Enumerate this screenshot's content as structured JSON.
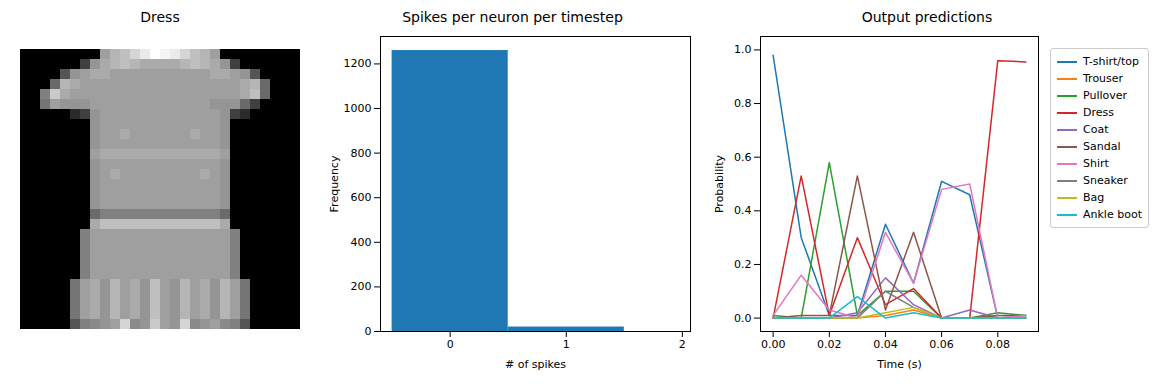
{
  "chart_data": [
    {
      "type": "image",
      "title": "Dress",
      "tick_labels": false,
      "pixels": [
        [
          0,
          0,
          0,
          0,
          0,
          0,
          0,
          0,
          150,
          170,
          180,
          200,
          220,
          240,
          230,
          220,
          200,
          180,
          170,
          150,
          0,
          0,
          0,
          0,
          0,
          0,
          0,
          0
        ],
        [
          0,
          0,
          0,
          0,
          0,
          0,
          60,
          140,
          160,
          170,
          180,
          170,
          160,
          160,
          160,
          160,
          170,
          180,
          170,
          160,
          140,
          60,
          0,
          0,
          0,
          0,
          0,
          0
        ],
        [
          0,
          0,
          0,
          0,
          80,
          140,
          150,
          160,
          160,
          150,
          150,
          150,
          150,
          150,
          150,
          150,
          150,
          150,
          150,
          160,
          160,
          150,
          140,
          80,
          0,
          0,
          0,
          0
        ],
        [
          0,
          0,
          0,
          100,
          170,
          160,
          150,
          150,
          150,
          150,
          150,
          150,
          150,
          150,
          150,
          150,
          150,
          150,
          150,
          150,
          150,
          150,
          160,
          170,
          100,
          0,
          0,
          0
        ],
        [
          0,
          0,
          120,
          190,
          160,
          150,
          150,
          150,
          150,
          150,
          150,
          150,
          150,
          150,
          150,
          150,
          150,
          150,
          150,
          150,
          150,
          150,
          160,
          180,
          100,
          0,
          0,
          0
        ],
        [
          0,
          0,
          110,
          150,
          140,
          140,
          140,
          150,
          150,
          150,
          150,
          150,
          150,
          150,
          150,
          150,
          150,
          150,
          150,
          140,
          140,
          140,
          100,
          60,
          0,
          0,
          0,
          0
        ],
        [
          0,
          0,
          0,
          0,
          0,
          40,
          60,
          140,
          150,
          150,
          150,
          150,
          150,
          150,
          150,
          150,
          150,
          150,
          150,
          150,
          140,
          60,
          40,
          0,
          0,
          0,
          0,
          0
        ],
        [
          0,
          0,
          0,
          0,
          0,
          0,
          0,
          140,
          150,
          150,
          150,
          150,
          150,
          150,
          150,
          150,
          150,
          150,
          150,
          150,
          140,
          0,
          0,
          0,
          0,
          0,
          0,
          0
        ],
        [
          0,
          0,
          0,
          0,
          0,
          0,
          0,
          140,
          150,
          150,
          160,
          150,
          150,
          150,
          150,
          150,
          150,
          160,
          150,
          150,
          140,
          0,
          0,
          0,
          0,
          0,
          0,
          0
        ],
        [
          0,
          0,
          0,
          0,
          0,
          0,
          0,
          140,
          150,
          150,
          150,
          150,
          150,
          150,
          150,
          150,
          150,
          150,
          150,
          150,
          140,
          0,
          0,
          0,
          0,
          0,
          0,
          0
        ],
        [
          0,
          0,
          0,
          0,
          0,
          0,
          0,
          150,
          160,
          160,
          160,
          160,
          160,
          160,
          160,
          160,
          160,
          160,
          160,
          160,
          150,
          0,
          0,
          0,
          0,
          0,
          0,
          0
        ],
        [
          0,
          0,
          0,
          0,
          0,
          0,
          0,
          140,
          150,
          150,
          150,
          150,
          150,
          150,
          150,
          150,
          150,
          150,
          150,
          150,
          140,
          0,
          0,
          0,
          0,
          0,
          0,
          0
        ],
        [
          0,
          0,
          0,
          0,
          0,
          0,
          0,
          140,
          150,
          160,
          150,
          150,
          150,
          150,
          150,
          150,
          150,
          150,
          160,
          150,
          140,
          0,
          0,
          0,
          0,
          0,
          0,
          0
        ],
        [
          0,
          0,
          0,
          0,
          0,
          0,
          0,
          140,
          150,
          150,
          150,
          150,
          150,
          150,
          150,
          150,
          150,
          150,
          150,
          150,
          140,
          0,
          0,
          0,
          0,
          0,
          0,
          0
        ],
        [
          0,
          0,
          0,
          0,
          0,
          0,
          0,
          140,
          150,
          150,
          150,
          150,
          150,
          150,
          150,
          150,
          150,
          150,
          150,
          150,
          140,
          0,
          0,
          0,
          0,
          0,
          0,
          0
        ],
        [
          0,
          0,
          0,
          0,
          0,
          0,
          0,
          140,
          150,
          150,
          150,
          150,
          150,
          150,
          150,
          150,
          150,
          150,
          150,
          150,
          140,
          0,
          0,
          0,
          0,
          0,
          0,
          0
        ],
        [
          0,
          0,
          0,
          0,
          0,
          0,
          0,
          100,
          120,
          120,
          120,
          120,
          120,
          120,
          120,
          120,
          120,
          120,
          120,
          120,
          100,
          0,
          0,
          0,
          0,
          0,
          0,
          0
        ],
        [
          0,
          0,
          0,
          0,
          0,
          0,
          0,
          160,
          180,
          180,
          180,
          180,
          180,
          180,
          180,
          180,
          180,
          180,
          180,
          180,
          160,
          0,
          0,
          0,
          0,
          0,
          0,
          0
        ],
        [
          0,
          0,
          0,
          0,
          0,
          0,
          120,
          150,
          150,
          150,
          150,
          150,
          150,
          150,
          150,
          150,
          150,
          150,
          150,
          150,
          150,
          120,
          0,
          0,
          0,
          0,
          0,
          0
        ],
        [
          0,
          0,
          0,
          0,
          0,
          0,
          120,
          150,
          150,
          150,
          150,
          150,
          150,
          150,
          150,
          150,
          150,
          150,
          150,
          150,
          150,
          120,
          0,
          0,
          0,
          0,
          0,
          0
        ],
        [
          0,
          0,
          0,
          0,
          0,
          0,
          120,
          150,
          150,
          150,
          150,
          150,
          150,
          150,
          150,
          150,
          150,
          150,
          150,
          150,
          150,
          120,
          0,
          0,
          0,
          0,
          0,
          0
        ],
        [
          0,
          0,
          0,
          0,
          0,
          0,
          120,
          150,
          150,
          150,
          150,
          150,
          150,
          150,
          150,
          150,
          150,
          150,
          150,
          150,
          150,
          120,
          0,
          0,
          0,
          0,
          0,
          0
        ],
        [
          0,
          0,
          0,
          0,
          0,
          0,
          120,
          150,
          150,
          150,
          150,
          150,
          150,
          150,
          150,
          150,
          150,
          150,
          150,
          150,
          150,
          120,
          0,
          0,
          0,
          0,
          0,
          0
        ],
        [
          0,
          0,
          0,
          0,
          0,
          110,
          150,
          160,
          140,
          170,
          150,
          160,
          140,
          180,
          150,
          140,
          170,
          150,
          160,
          140,
          170,
          150,
          110,
          0,
          0,
          0,
          0,
          0
        ],
        [
          0,
          0,
          0,
          0,
          0,
          110,
          150,
          160,
          140,
          170,
          150,
          160,
          140,
          180,
          150,
          140,
          170,
          150,
          160,
          140,
          170,
          150,
          110,
          0,
          0,
          0,
          0,
          0
        ],
        [
          0,
          0,
          0,
          0,
          0,
          110,
          150,
          160,
          140,
          170,
          150,
          160,
          140,
          180,
          150,
          140,
          170,
          150,
          160,
          140,
          170,
          150,
          110,
          0,
          0,
          0,
          0,
          0
        ],
        [
          0,
          0,
          0,
          0,
          0,
          110,
          150,
          160,
          140,
          170,
          150,
          160,
          140,
          180,
          150,
          140,
          170,
          150,
          160,
          140,
          170,
          150,
          110,
          0,
          0,
          0,
          0,
          0
        ],
        [
          0,
          0,
          0,
          0,
          0,
          80,
          120,
          130,
          140,
          150,
          200,
          130,
          140,
          190,
          150,
          140,
          200,
          130,
          140,
          150,
          130,
          120,
          80,
          0,
          0,
          0,
          0,
          0
        ]
      ]
    },
    {
      "type": "histogram",
      "title": "Spikes per neuron per timestep",
      "x_label": "# of spikes",
      "y_label": "Frequency",
      "bins": [
        -0.5,
        0.5,
        1.5
      ],
      "counts": [
        1260,
        20
      ],
      "color": "#1f77b4",
      "xlim": [
        -0.6,
        2.07
      ],
      "xticks": [
        0,
        1,
        2
      ],
      "ylim": [
        0,
        1323
      ],
      "yticks": [
        0,
        200,
        400,
        600,
        800,
        1000,
        1200
      ]
    },
    {
      "type": "line",
      "title": "Output predictions",
      "x_label": "Time (s)",
      "y_label": "Probability",
      "legend": "right",
      "x": [
        0,
        0.01,
        0.02,
        0.03,
        0.04,
        0.05,
        0.06,
        0.07,
        0.08,
        0.09
      ],
      "xlim": [
        -0.0045,
        0.0945
      ],
      "xticks": [
        {
          "value": 0,
          "label": "0.00"
        },
        {
          "value": 0.02,
          "label": "0.02"
        },
        {
          "value": 0.04,
          "label": "0.04"
        },
        {
          "value": 0.06,
          "label": "0.06"
        },
        {
          "value": 0.08,
          "label": "0.08"
        }
      ],
      "ylim": [
        -0.05,
        1.05
      ],
      "yticks": [
        {
          "value": 0,
          "label": "0.0"
        },
        {
          "value": 0.2,
          "label": "0.2"
        },
        {
          "value": 0.4,
          "label": "0.4"
        },
        {
          "value": 0.6,
          "label": "0.6"
        },
        {
          "value": 0.8,
          "label": "0.8"
        },
        {
          "value": 1,
          "label": "1.0"
        }
      ],
      "series": [
        {
          "name": "T-shirt/top",
          "color": "#1f77b4",
          "values": [
            0.98,
            0.3,
            0.01,
            0.01,
            0.35,
            0.13,
            0.51,
            0.46,
            0.0,
            0.0
          ]
        },
        {
          "name": "Trouser",
          "color": "#ff7f0e",
          "values": [
            0.0,
            0.0,
            0.0,
            0.0,
            0.01,
            0.03,
            0.0,
            0.0,
            0.0,
            0.0
          ]
        },
        {
          "name": "Pullover",
          "color": "#2ca02c",
          "values": [
            0.01,
            0.0,
            0.58,
            0.01,
            0.1,
            0.1,
            0.0,
            0.0,
            0.02,
            0.01
          ]
        },
        {
          "name": "Dress",
          "color": "#d62728",
          "values": [
            0.0,
            0.53,
            0.01,
            0.3,
            0.05,
            0.11,
            0.0,
            0.0,
            0.96,
            0.955
          ]
        },
        {
          "name": "Coat",
          "color": "#9467bd",
          "values": [
            0.0,
            0.0,
            0.0,
            0.02,
            0.15,
            0.05,
            0.0,
            0.03,
            0.0,
            0.01
          ]
        },
        {
          "name": "Sandal",
          "color": "#8c564b",
          "values": [
            0.0,
            0.01,
            0.01,
            0.53,
            0.03,
            0.32,
            0.0,
            0.0,
            0.01,
            0.01
          ]
        },
        {
          "name": "Shirt",
          "color": "#e377c2",
          "values": [
            0.01,
            0.16,
            0.03,
            0.0,
            0.32,
            0.13,
            0.48,
            0.5,
            0.0,
            0.01
          ]
        },
        {
          "name": "Sneaker",
          "color": "#7f7f7f",
          "values": [
            0.0,
            0.0,
            0.0,
            0.0,
            0.1,
            0.04,
            0.0,
            0.0,
            0.0,
            0.0
          ]
        },
        {
          "name": "Bag",
          "color": "#bcbd22",
          "values": [
            0.0,
            0.0,
            0.0,
            0.0,
            0.02,
            0.04,
            0.0,
            0.0,
            0.0,
            0.0
          ]
        },
        {
          "name": "Ankle boot",
          "color": "#17becf",
          "values": [
            0.0,
            0.0,
            0.0,
            0.08,
            0.0,
            0.02,
            0.0,
            0.0,
            0.0,
            0.0
          ]
        }
      ]
    }
  ]
}
